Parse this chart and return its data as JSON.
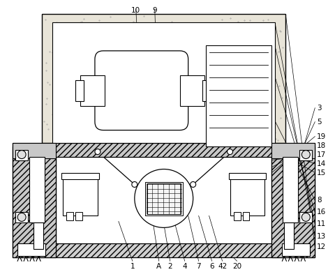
{
  "bg_color": "#ffffff",
  "line_color": "#000000",
  "label_color": "#000000",
  "label_fontsize": 7.5,
  "right_labels": [
    [
      "12",
      455,
      355
    ],
    [
      "13",
      455,
      340
    ],
    [
      "11",
      455,
      322
    ],
    [
      "16",
      455,
      305
    ],
    [
      "8",
      455,
      288
    ],
    [
      "15",
      455,
      248
    ],
    [
      "14",
      455,
      235
    ],
    [
      "17",
      455,
      222
    ],
    [
      "18",
      455,
      209
    ],
    [
      "19",
      455,
      196
    ],
    [
      "5",
      455,
      175
    ],
    [
      "3",
      455,
      155
    ]
  ],
  "top_labels": [
    [
      "10",
      195,
      10
    ],
    [
      "9",
      222,
      10
    ]
  ],
  "bottom_labels": [
    [
      "1",
      190,
      378
    ],
    [
      "A",
      228,
      378
    ],
    [
      "2",
      244,
      378
    ],
    [
      "4",
      265,
      378
    ],
    [
      "7",
      285,
      378
    ],
    [
      "6",
      304,
      378
    ],
    [
      "42",
      319,
      378
    ],
    [
      "20",
      340,
      378
    ]
  ]
}
